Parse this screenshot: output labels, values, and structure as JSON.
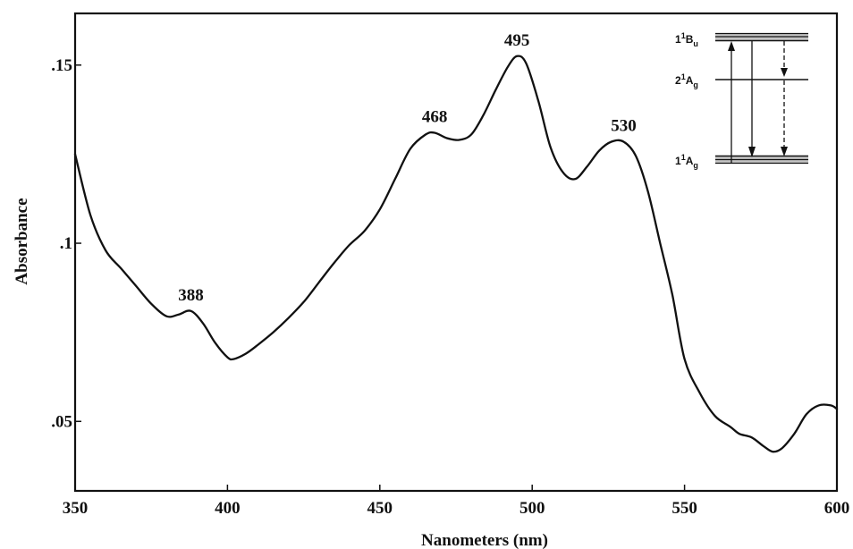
{
  "chart_data": {
    "type": "line",
    "xlabel": "Nanometers (nm)",
    "ylabel": "Absorbance",
    "xlim": [
      350,
      600
    ],
    "ylim": [
      0.0305,
      0.1645
    ],
    "grid": false,
    "x_ticks": [
      {
        "value": 350,
        "label": "350"
      },
      {
        "value": 400,
        "label": "400"
      },
      {
        "value": 450,
        "label": "450"
      },
      {
        "value": 500,
        "label": "500"
      },
      {
        "value": 550,
        "label": "550"
      },
      {
        "value": 600,
        "label": "600"
      }
    ],
    "y_ticks": [
      {
        "value": 0.05,
        "label": ".05"
      },
      {
        "value": 0.1,
        "label": ".1"
      },
      {
        "value": 0.15,
        "label": ".15"
      }
    ],
    "series": [
      {
        "x": [
          350,
          355,
          360,
          365,
          370,
          375,
          380,
          384,
          388,
          392,
          396,
          400,
          402,
          406,
          410,
          415,
          420,
          425,
          430,
          435,
          440,
          445,
          450,
          455,
          460,
          465,
          468,
          472,
          476,
          480,
          484,
          488,
          492,
          495,
          498,
          502,
          506,
          510,
          514,
          518,
          522,
          526,
          530,
          534,
          538,
          542,
          546,
          550,
          555,
          560,
          565,
          568,
          572,
          576,
          579,
          582,
          586,
          590,
          594,
          598,
          600
        ],
        "y": [
          0.125,
          0.108,
          0.098,
          0.093,
          0.088,
          0.083,
          0.0795,
          0.08,
          0.081,
          0.0775,
          0.072,
          0.068,
          0.0675,
          0.069,
          0.0715,
          0.075,
          0.079,
          0.0835,
          0.089,
          0.0945,
          0.0995,
          0.1035,
          0.1095,
          0.118,
          0.1265,
          0.1305,
          0.131,
          0.1295,
          0.129,
          0.1305,
          0.136,
          0.143,
          0.1495,
          0.1525,
          0.1505,
          0.14,
          0.127,
          0.12,
          0.118,
          0.1215,
          0.126,
          0.1285,
          0.1285,
          0.1245,
          0.1145,
          0.1,
          0.0855,
          0.0675,
          0.058,
          0.0515,
          0.0485,
          0.0465,
          0.0455,
          0.043,
          0.0415,
          0.0425,
          0.0465,
          0.052,
          0.0545,
          0.0545,
          0.0535
        ]
      }
    ],
    "annotations": [
      {
        "label": "388",
        "x": 388,
        "y": 0.081
      },
      {
        "label": "468",
        "x": 468,
        "y": 0.131
      },
      {
        "label": "495",
        "x": 495,
        "y": 0.1525
      },
      {
        "label": "530",
        "x": 530,
        "y": 0.1285
      }
    ],
    "inset": {
      "levels": [
        {
          "base": "1",
          "sup": "1",
          "letter": "B",
          "sub": "u"
        },
        {
          "base": "2",
          "sup": "1",
          "letter": "A",
          "sub": "g"
        },
        {
          "base": "1",
          "sup": "1",
          "letter": "A",
          "sub": "g"
        }
      ]
    }
  }
}
